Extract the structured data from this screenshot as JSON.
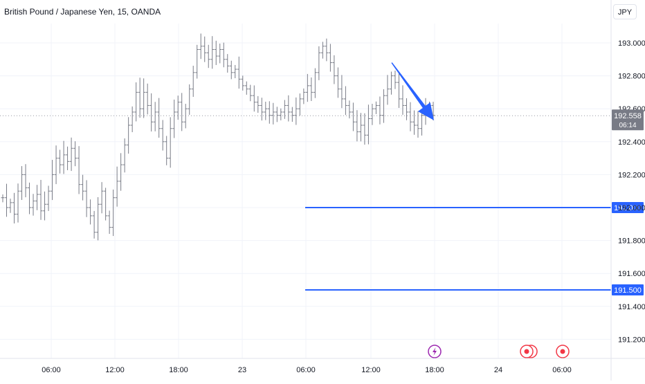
{
  "header": {
    "symbol_title": "British Pound / Japanese Yen, 15, OANDA",
    "currency_button": "JPY"
  },
  "chart_data": {
    "type": "ohlc",
    "title": "British Pound / Japanese Yen, 15, OANDA",
    "ylim": [
      191.03,
      193.12
    ],
    "y_ticks": [
      193.0,
      192.8,
      192.6,
      192.4,
      192.2,
      192.0,
      191.8,
      191.6,
      191.4,
      191.2
    ],
    "y_tick_labels": [
      "193.000",
      "192.800",
      "192.600",
      "192.400",
      "192.200",
      "192.000",
      "191.800",
      "191.600",
      "191.400",
      "191.200"
    ],
    "x_tick_labels": [
      "06:00",
      "12:00",
      "18:00",
      "23",
      "06:00",
      "12:00",
      "18:00",
      "24",
      "06:00"
    ],
    "grid": true,
    "current_price": {
      "label": "192.558",
      "countdown": "06:14",
      "value": 192.558
    },
    "horizontal_levels": [
      {
        "value": 192.0,
        "label": "192.000",
        "color": "#2962ff"
      },
      {
        "value": 191.5,
        "label": "191.500",
        "color": "#2962ff"
      }
    ],
    "arrow_annotation": {
      "color": "#2962ff",
      "from_value": 192.88,
      "to_value": 192.53
    },
    "event_markers": [
      {
        "kind": "lightning-icon",
        "color": "#9c27b0"
      },
      {
        "kind": "economic-event-icon",
        "color": "#f23645"
      },
      {
        "kind": "economic-event-icon",
        "color": "#f23645"
      }
    ],
    "price_path": [
      192.06,
      192.0,
      192.03,
      191.96,
      192.1,
      192.2,
      192.12,
      192.0,
      192.04,
      192.08,
      191.98,
      192.02,
      192.1,
      192.2,
      192.3,
      192.26,
      192.32,
      192.28,
      192.36,
      192.3,
      192.14,
      192.1,
      192.0,
      191.95,
      191.85,
      192.02,
      192.1,
      191.95,
      191.88,
      192.06,
      192.16,
      192.26,
      192.38,
      192.5,
      192.58,
      192.7,
      192.6,
      192.7,
      192.62,
      192.52,
      192.58,
      192.48,
      192.4,
      192.3,
      192.48,
      192.58,
      192.64,
      192.52,
      192.6,
      192.72,
      192.82,
      192.96,
      192.98,
      192.94,
      192.9,
      192.96,
      192.92,
      192.96,
      192.9,
      192.86,
      192.82,
      192.84,
      192.78,
      192.74,
      192.72,
      192.68,
      192.64,
      192.62,
      192.58,
      192.6,
      192.56,
      192.58,
      192.56,
      192.58,
      192.62,
      192.58,
      192.56,
      192.6,
      192.66,
      192.7,
      192.74,
      192.7,
      192.82,
      192.94,
      192.98,
      192.94,
      192.88,
      192.8,
      192.72,
      192.66,
      192.62,
      192.58,
      192.52,
      192.46,
      192.5,
      192.44,
      192.54,
      192.6,
      192.62,
      192.56,
      192.68,
      192.72,
      192.8,
      192.76,
      192.66,
      192.62,
      192.58,
      192.52,
      192.5,
      192.48,
      192.56,
      192.6,
      192.62,
      192.56
    ]
  }
}
